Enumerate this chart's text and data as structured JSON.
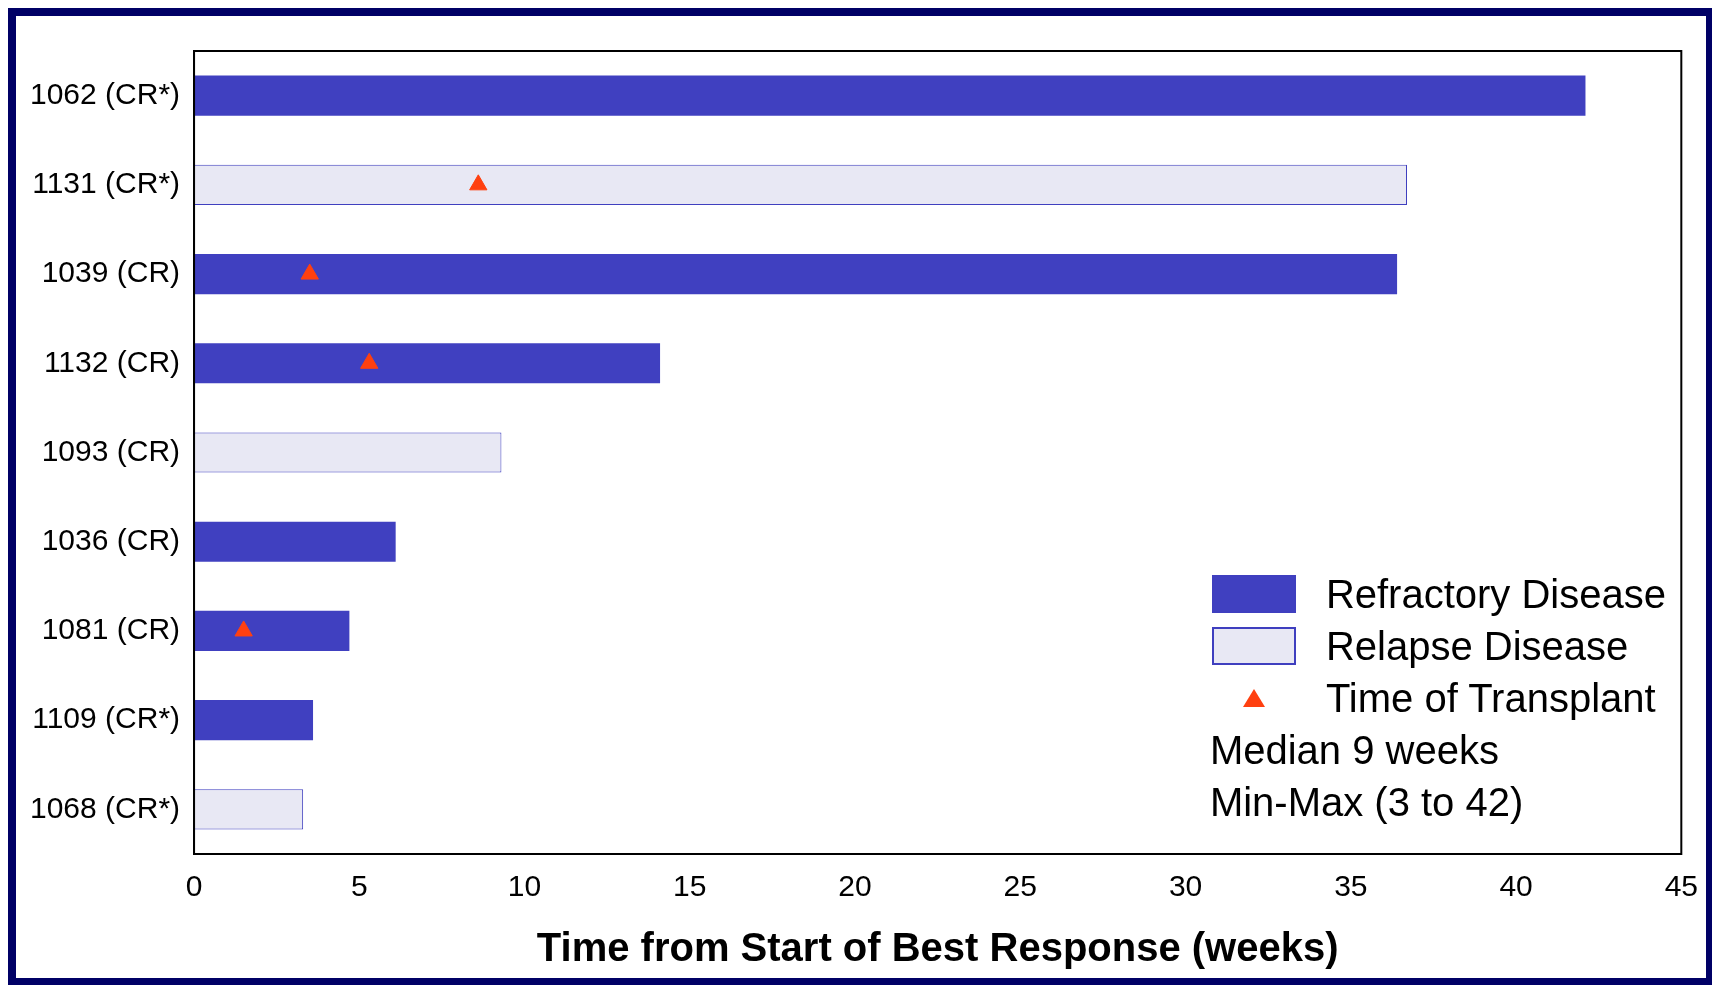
{
  "chart_data": {
    "type": "bar",
    "orientation": "horizontal",
    "xlabel": "Time from Start of Best Response (weeks)",
    "categories": [
      "1062 (CR*)",
      "1131 (CR*)",
      "1039 (CR)",
      "1132 (CR)",
      "1093 (CR)",
      "1036 (CR)",
      "1081 (CR)",
      "1109 (CR*)",
      "1068 (CR*)"
    ],
    "series": [
      {
        "name": "Refractory Disease",
        "color": "#4040c0",
        "values": [
          42.1,
          null,
          36.4,
          14.1,
          null,
          6.1,
          4.7,
          3.6,
          null
        ]
      },
      {
        "name": "Relapse Disease",
        "color": "#e8e8f4",
        "values": [
          null,
          36.7,
          null,
          null,
          9.3,
          null,
          null,
          null,
          3.3
        ]
      },
      {
        "name": "Time of Transplant",
        "type": "scatter",
        "marker": "triangle",
        "color": "#ff4010",
        "x": [
          "1131 (CR*)",
          "1039 (CR)",
          "1132 (CR)",
          "1081 (CR)"
        ],
        "values": [
          8.6,
          3.5,
          5.3,
          1.5
        ]
      }
    ],
    "stacked": true,
    "xlim": [
      0,
      45
    ],
    "xticks": [
      0,
      5,
      10,
      15,
      20,
      25,
      30,
      35,
      40,
      45
    ],
    "grid": false,
    "legend": "bottom right",
    "annotations": [
      "Median 9 weeks",
      "Min-Max (3 to 42)"
    ]
  }
}
